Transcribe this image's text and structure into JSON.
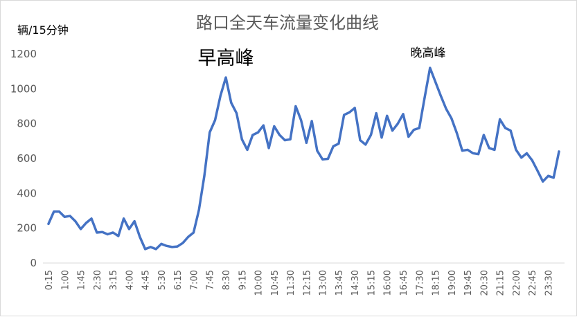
{
  "chart_data": {
    "type": "line",
    "title": "路口全天车流量变化曲线",
    "ylabel": "辆/15分钟",
    "xlabel": "",
    "ylim": [
      0,
      1200
    ],
    "yticks": [
      0,
      200,
      400,
      600,
      800,
      1000,
      1200
    ],
    "grid": false,
    "legend": "none",
    "series_color": "#4472c4",
    "x": [
      "0:15",
      "0:30",
      "0:45",
      "1:00",
      "1:15",
      "1:30",
      "1:45",
      "2:00",
      "2:15",
      "2:30",
      "2:45",
      "3:00",
      "3:15",
      "3:30",
      "3:45",
      "4:00",
      "4:15",
      "4:30",
      "4:45",
      "5:00",
      "5:15",
      "5:30",
      "5:45",
      "6:00",
      "6:15",
      "6:30",
      "6:45",
      "7:00",
      "7:15",
      "7:30",
      "7:45",
      "8:00",
      "8:15",
      "8:30",
      "8:45",
      "9:00",
      "9:15",
      "9:30",
      "9:45",
      "10:00",
      "10:15",
      "10:30",
      "10:45",
      "11:00",
      "11:15",
      "11:30",
      "11:45",
      "12:00",
      "12:15",
      "12:30",
      "12:45",
      "13:00",
      "13:15",
      "13:30",
      "13:45",
      "14:00",
      "14:15",
      "14:30",
      "14:45",
      "15:00",
      "15:15",
      "15:30",
      "15:45",
      "16:00",
      "16:15",
      "16:30",
      "16:45",
      "17:00",
      "17:15",
      "17:30",
      "17:45",
      "18:00",
      "18:15",
      "18:30",
      "18:45",
      "19:00",
      "19:15",
      "19:30",
      "19:45",
      "20:00",
      "20:15",
      "20:30",
      "20:45",
      "21:00",
      "21:15",
      "21:30",
      "21:45",
      "22:00",
      "22:15",
      "22:30",
      "22:45",
      "23:00",
      "23:15",
      "23:30",
      "23:45",
      "24:00"
    ],
    "xticks_shown": [
      "0:15",
      "1:00",
      "1:45",
      "2:30",
      "3:15",
      "4:00",
      "4:45",
      "5:30",
      "6:15",
      "7:00",
      "7:45",
      "8:30",
      "9:15",
      "10:00",
      "10:45",
      "11:30",
      "12:15",
      "13:00",
      "13:45",
      "14:30",
      "15:15",
      "16:00",
      "16:45",
      "17:30",
      "18:15",
      "19:00",
      "19:45",
      "20:30",
      "21:15",
      "22:00",
      "22:45",
      "23:30"
    ],
    "series": [
      {
        "values": [
          225,
          295,
          295,
          265,
          270,
          240,
          195,
          230,
          255,
          175,
          178,
          165,
          175,
          155,
          255,
          195,
          240,
          150,
          80,
          92,
          80,
          110,
          98,
          92,
          95,
          115,
          150,
          175,
          305,
          500,
          750,
          820,
          960,
          1065,
          920,
          860,
          710,
          650,
          735,
          750,
          790,
          660,
          785,
          735,
          705,
          710,
          900,
          820,
          690,
          815,
          645,
          595,
          598,
          670,
          685,
          850,
          865,
          890,
          705,
          680,
          735,
          860,
          720,
          845,
          760,
          800,
          855,
          725,
          765,
          775,
          950,
          1120,
          1040,
          960,
          885,
          830,
          745,
          645,
          650,
          630,
          625,
          735,
          660,
          650,
          825,
          775,
          760,
          650,
          605,
          630,
          590,
          530,
          468,
          500,
          490,
          640
        ]
      }
    ],
    "annotations": [
      {
        "text": "早高峰",
        "at_x": "7:00"
      },
      {
        "text": "晚高峰",
        "at_x": "17:30"
      }
    ]
  }
}
